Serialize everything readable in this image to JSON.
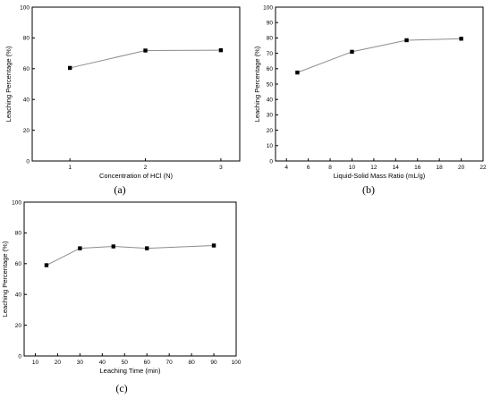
{
  "chart_data": [
    {
      "type": "line",
      "panel_label": "(a)",
      "xlabel": "Concentration of HCl (N)",
      "ylabel": "Leaching Percentage (%)",
      "xlim": [
        0.5,
        3.25
      ],
      "ylim": [
        0,
        100
      ],
      "xticks": [
        "1",
        "2",
        "3"
      ],
      "yticks": [
        "0",
        "20",
        "40",
        "60",
        "80",
        "100"
      ],
      "grid": false,
      "series": [
        {
          "x": [
            1,
            2,
            3
          ],
          "y": [
            60.5,
            71.8,
            72
          ]
        }
      ]
    },
    {
      "type": "line",
      "panel_label": "(b)",
      "xlabel": "Liquid-Solid Mass Ratio (mL/g)",
      "ylabel": "Leaching Percentage (%)",
      "xlim": [
        3,
        22
      ],
      "ylim": [
        0,
        100
      ],
      "xticks": [
        "4",
        "6",
        "8",
        "10",
        "12",
        "14",
        "16",
        "18",
        "20",
        "22"
      ],
      "yticks": [
        "0",
        "10",
        "20",
        "30",
        "40",
        "50",
        "60",
        "70",
        "80",
        "90",
        "100"
      ],
      "grid": false,
      "series": [
        {
          "x": [
            5,
            10,
            15,
            20
          ],
          "y": [
            57.5,
            71,
            78.5,
            79.5
          ]
        }
      ]
    },
    {
      "type": "line",
      "panel_label": "(c)",
      "xlabel": "Leaching Time (min)",
      "ylabel": "Leaching Percentage (%)",
      "xlim": [
        5,
        100
      ],
      "ylim": [
        0,
        100
      ],
      "xticks": [
        "10",
        "20",
        "30",
        "40",
        "50",
        "60",
        "70",
        "80",
        "90",
        "100"
      ],
      "yticks": [
        "0",
        "20",
        "40",
        "60",
        "80",
        "100"
      ],
      "grid": false,
      "series": [
        {
          "x": [
            15,
            30,
            45,
            60,
            90
          ],
          "y": [
            59,
            70,
            71.2,
            70,
            71.8
          ]
        }
      ]
    }
  ]
}
